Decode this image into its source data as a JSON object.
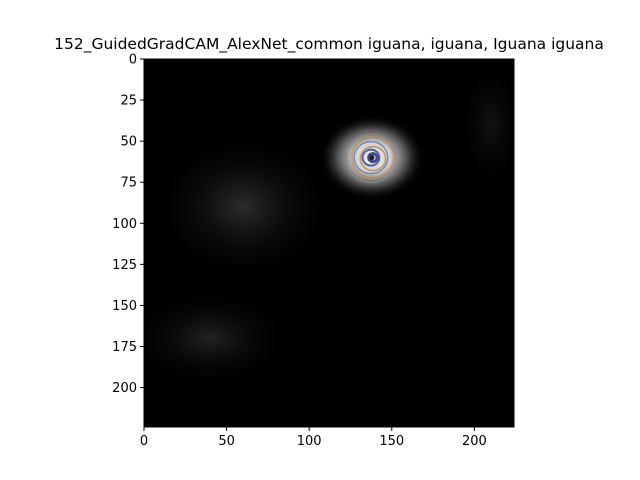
{
  "chart_data": {
    "type": "heatmap",
    "title": "152_GuidedGradCAM_AlexNet_common iguana, iguana, Iguana iguana",
    "xlabel": "",
    "ylabel": "",
    "xlim": [
      0,
      224
    ],
    "ylim": [
      224,
      0
    ],
    "x_ticks": [
      0,
      50,
      100,
      150,
      200
    ],
    "y_ticks": [
      0,
      25,
      50,
      75,
      100,
      125,
      150,
      175,
      200
    ],
    "grid": false,
    "colors": {
      "background": "#000000",
      "highlight": "#e8e8e8",
      "ring_blue": "#3a4a9a",
      "ring_orange": "#c08a50"
    },
    "hotspots": [
      {
        "x": 138,
        "y": 60,
        "intensity": 0.95,
        "spread_x": 32,
        "spread_y": 26
      },
      {
        "x": 60,
        "y": 90,
        "intensity": 0.18,
        "spread_x": 55,
        "spread_y": 45
      },
      {
        "x": 40,
        "y": 170,
        "intensity": 0.14,
        "spread_x": 50,
        "spread_y": 30
      },
      {
        "x": 210,
        "y": 40,
        "intensity": 0.08,
        "spread_x": 20,
        "spread_y": 40
      }
    ]
  }
}
